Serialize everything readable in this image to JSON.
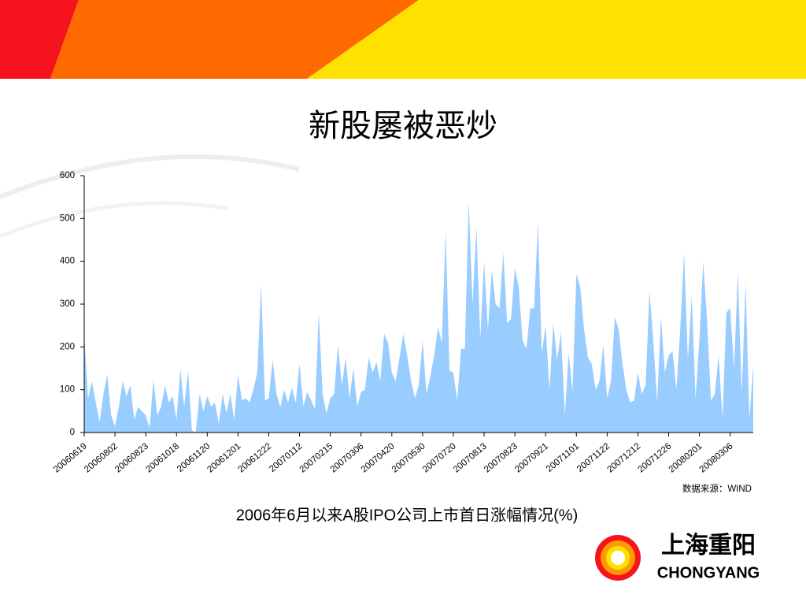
{
  "chart_data": {
    "type": "area",
    "title": "新股屡被恶炒",
    "caption": "2006年6月以来A股IPO公司上市首日涨幅情况(%)",
    "source": "数据来源：WIND",
    "color": "#99ccff",
    "categories": [
      "20060619",
      null,
      null,
      null,
      null,
      null,
      null,
      null,
      "20060802",
      null,
      null,
      null,
      null,
      null,
      null,
      null,
      "20060823",
      null,
      null,
      null,
      null,
      null,
      null,
      null,
      "20061018",
      null,
      null,
      null,
      null,
      null,
      null,
      null,
      "20061120",
      null,
      null,
      null,
      null,
      null,
      null,
      null,
      "20061201",
      null,
      null,
      null,
      null,
      null,
      null,
      null,
      "20061222",
      null,
      null,
      null,
      null,
      null,
      null,
      null,
      "20070112",
      null,
      null,
      null,
      null,
      null,
      null,
      null,
      "20070215",
      null,
      null,
      null,
      null,
      null,
      null,
      null,
      "20070306",
      null,
      null,
      null,
      null,
      null,
      null,
      null,
      "20070420",
      null,
      null,
      null,
      null,
      null,
      null,
      null,
      "20070530",
      null,
      null,
      null,
      null,
      null,
      null,
      null,
      "20070720",
      null,
      null,
      null,
      null,
      null,
      null,
      null,
      "20070813",
      null,
      null,
      null,
      null,
      null,
      null,
      null,
      "20070823",
      null,
      null,
      null,
      null,
      null,
      null,
      null,
      "20070921",
      null,
      null,
      null,
      null,
      null,
      null,
      null,
      "20071101",
      null,
      null,
      null,
      null,
      null,
      null,
      null,
      "20071122",
      null,
      null,
      null,
      null,
      null,
      null,
      null,
      "20071212",
      null,
      null,
      null,
      null,
      null,
      null,
      null,
      "20071226",
      null,
      null,
      null,
      null,
      null,
      null,
      null,
      "20080201",
      null,
      null,
      null,
      null,
      null,
      null,
      null,
      "20080306",
      null,
      null,
      null,
      null,
      null,
      null
    ],
    "values": [
      230,
      80,
      120,
      70,
      25,
      90,
      135,
      40,
      15,
      60,
      120,
      85,
      110,
      30,
      60,
      50,
      40,
      10,
      125,
      40,
      60,
      110,
      70,
      85,
      30,
      150,
      60,
      145,
      5,
      0,
      90,
      50,
      85,
      60,
      70,
      20,
      90,
      45,
      90,
      30,
      135,
      75,
      80,
      70,
      100,
      140,
      345,
      75,
      80,
      170,
      90,
      60,
      100,
      70,
      105,
      70,
      160,
      60,
      95,
      75,
      55,
      280,
      90,
      45,
      80,
      90,
      205,
      110,
      175,
      80,
      150,
      60,
      95,
      100,
      175,
      140,
      165,
      120,
      230,
      210,
      140,
      120,
      175,
      230,
      180,
      120,
      80,
      110,
      215,
      90,
      130,
      180,
      245,
      210,
      470,
      145,
      140,
      75,
      195,
      195,
      540,
      300,
      480,
      220,
      400,
      240,
      380,
      300,
      290,
      420,
      255,
      265,
      385,
      340,
      215,
      195,
      290,
      290,
      490,
      185,
      250,
      100,
      255,
      170,
      235,
      40,
      185,
      95,
      370,
      340,
      240,
      175,
      160,
      100,
      120,
      205,
      80,
      120,
      270,
      240,
      160,
      100,
      70,
      75,
      140,
      90,
      110,
      330,
      215,
      70,
      270,
      140,
      180,
      190,
      100,
      240,
      420,
      170,
      320,
      80,
      220,
      400,
      260,
      75,
      90,
      180,
      30,
      280,
      290,
      150,
      375,
      90,
      350,
      30,
      160
    ],
    "ylim": [
      0,
      600
    ],
    "yticks": [
      0,
      100,
      200,
      300,
      400,
      500,
      600
    ]
  },
  "logo": {
    "name": "上海重阳",
    "english": "CHONGYANG"
  }
}
